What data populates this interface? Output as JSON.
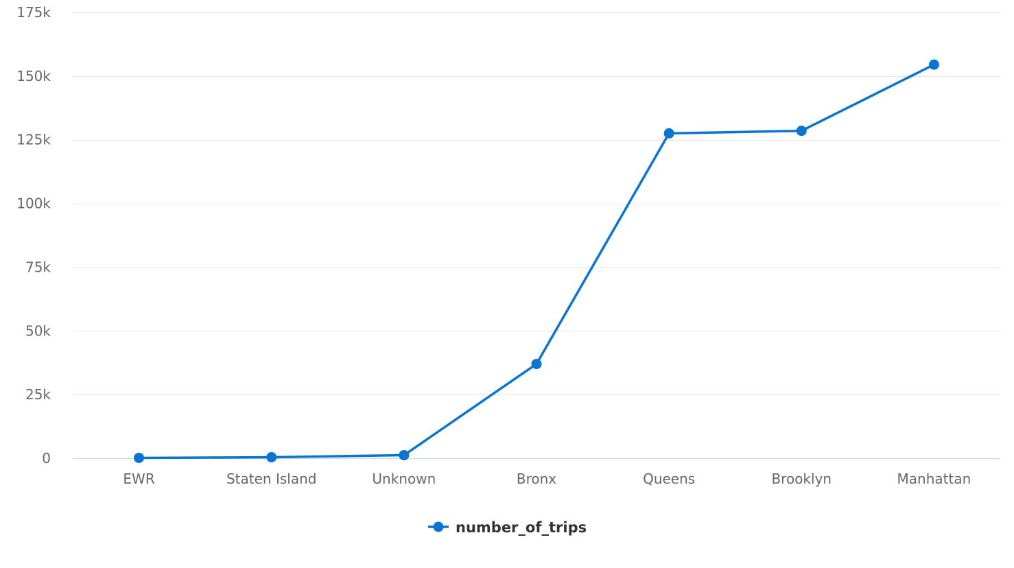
{
  "chart_data": {
    "type": "line",
    "categories": [
      "EWR",
      "Staten Island",
      "Unknown",
      "Bronx",
      "Queens",
      "Brooklyn",
      "Manhattan"
    ],
    "series": [
      {
        "name": "number_of_trips",
        "values": [
          150,
          400,
          1200,
          37000,
          127500,
          128500,
          154500
        ],
        "color": "#0a74d1"
      }
    ],
    "ylim": [
      0,
      175000
    ],
    "yticks": [
      0,
      25000,
      50000,
      75000,
      100000,
      125000,
      150000,
      175000
    ],
    "ytick_labels": [
      "0",
      "25k",
      "50k",
      "75k",
      "100k",
      "125k",
      "150k",
      "175k"
    ],
    "grid": true,
    "legend": "bottom-center",
    "title": "",
    "xlabel": "",
    "ylabel": ""
  },
  "colors": {
    "series": "#0a74d1",
    "grid": "#e6e6e6",
    "axis": "#ccd6eb",
    "tick_text": "#666666"
  }
}
